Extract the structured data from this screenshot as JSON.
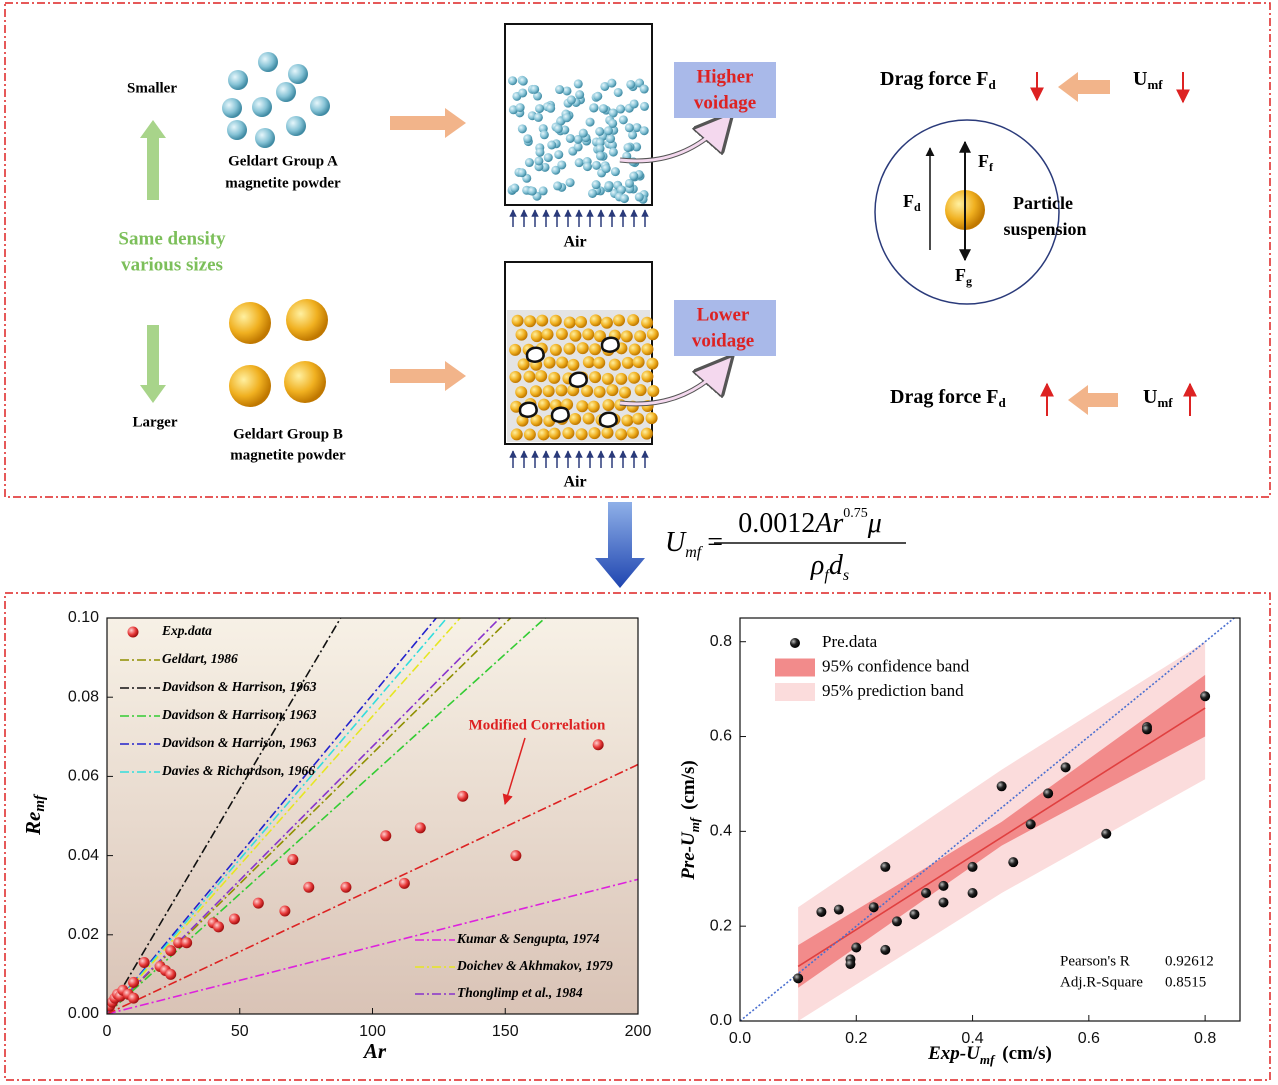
{
  "diagram": {
    "size_small": "Smaller",
    "size_large": "Larger",
    "density": [
      "Same density",
      "various sizes"
    ],
    "group_a": [
      "Geldart Group A",
      "magnetite powder"
    ],
    "group_b": [
      "Geldart Group B",
      "magnetite powder"
    ],
    "air_top": "Air",
    "air_bottom": "Air",
    "voidage_high": [
      "Higher",
      "voidage"
    ],
    "voidage_low": [
      "Lower",
      "voidage"
    ],
    "drag_top": {
      "label": "Drag force F",
      "sub": "d",
      "u": "U",
      "u_sub": "mf"
    },
    "drag_bottom": {
      "label": "Drag force F",
      "sub": "d",
      "u": "U",
      "u_sub": "mf"
    },
    "forces": {
      "ff": "F",
      "ff_sub": "f",
      "fd": "F",
      "fd_sub": "d",
      "fg": "F",
      "fg_sub": "g",
      "suspension": [
        "Particle",
        "suspension"
      ]
    }
  },
  "equation": {
    "lhs": "U",
    "lhs_sub": "mf",
    "eq": "=",
    "coef": "0.0012",
    "var": "Ar",
    "exp": "0.75",
    "mu": "μ",
    "rho": "ρ",
    "rho_sub": "f",
    "d": "d",
    "d_sub": "s"
  },
  "chart_data": [
    {
      "type": "scatter",
      "xlabel": "Ar",
      "ylabel": "Re",
      "ylabel_sub": "mf",
      "xlim": [
        0,
        200
      ],
      "ylim": [
        0,
        0.1
      ],
      "xticks": [
        0,
        50,
        100,
        150,
        200
      ],
      "yticks": [
        {
          "value": 0,
          "label": "0.00"
        },
        {
          "value": 0.02,
          "label": "0.02"
        },
        {
          "value": 0.04,
          "label": "0.04"
        },
        {
          "value": 0.06,
          "label": "0.06"
        },
        {
          "value": 0.08,
          "label": "0.08"
        },
        {
          "value": 0.1,
          "label": "0.10"
        }
      ],
      "series": [
        {
          "name": "Exp.data",
          "color": "#e83a3a",
          "kind": "points",
          "legend": "upper left",
          "x": [
            1,
            2,
            3,
            4,
            5,
            6,
            8,
            10,
            10,
            14,
            20,
            22,
            24,
            24,
            27,
            30,
            40,
            42,
            48,
            57,
            67,
            70,
            76,
            90,
            105,
            112,
            118,
            134,
            154,
            185
          ],
          "values": [
            0.002,
            0.003,
            0.004,
            0.005,
            0.0045,
            0.006,
            0.005,
            0.004,
            0.008,
            0.013,
            0.012,
            0.011,
            0.01,
            0.016,
            0.018,
            0.018,
            0.023,
            0.022,
            0.024,
            0.028,
            0.026,
            0.039,
            0.032,
            0.032,
            0.045,
            0.033,
            0.047,
            0.055,
            0.04,
            0.068
          ]
        },
        {
          "name": "Geldart, 1986",
          "color": "#8f8f00",
          "kind": "line",
          "style": "dashdot",
          "legend": "upper left",
          "x": [
            0,
            152
          ],
          "values": [
            0,
            0.1
          ]
        },
        {
          "name": "Davidson & Harrison, 1963",
          "color": "#111111",
          "kind": "line",
          "style": "dashdot",
          "legend": "upper left",
          "x": [
            0,
            88
          ],
          "values": [
            0,
            0.1
          ]
        },
        {
          "name": "Davidson & Harrison, 1963",
          "color": "#33cc33",
          "kind": "line",
          "style": "dashdot",
          "legend": "upper left",
          "x": [
            0,
            165
          ],
          "values": [
            0,
            0.1
          ]
        },
        {
          "name": "Davidson & Harrison, 1963",
          "color": "#2222cc",
          "kind": "line",
          "style": "dashdot",
          "legend": "upper left",
          "x": [
            0,
            124
          ],
          "values": [
            0,
            0.1
          ]
        },
        {
          "name": "Davies & Richardson, 1966",
          "color": "#33dddd",
          "kind": "line",
          "style": "dashdot",
          "legend": "upper left",
          "x": [
            0,
            128
          ],
          "values": [
            0,
            0.1
          ]
        },
        {
          "name": "Kumar & Sengupta, 1974",
          "color": "#dd22dd",
          "kind": "line",
          "style": "dashdot",
          "legend": "lower right",
          "x": [
            0,
            200
          ],
          "values": [
            0,
            0.034
          ]
        },
        {
          "name": "Doichev & Akhmakov, 1979",
          "color": "#e6e622",
          "kind": "line",
          "style": "dashdot",
          "legend": "lower right",
          "x": [
            0,
            133
          ],
          "values": [
            0,
            0.1
          ]
        },
        {
          "name": "Thonglimp et al., 1984",
          "color": "#8833cc",
          "kind": "line",
          "style": "dashdot",
          "legend": "lower right",
          "x": [
            0,
            148
          ],
          "values": [
            0,
            0.1
          ]
        },
        {
          "name": "Modified Correlation",
          "color": "#dd2222",
          "kind": "line",
          "style": "dashdot",
          "legend": "annotation",
          "x": [
            0,
            200
          ],
          "values": [
            0,
            0.063
          ]
        }
      ]
    },
    {
      "type": "scatter",
      "xlabel": "Exp-U",
      "xlabel_sub": "mf",
      "xlabel_unit": "(cm/s)",
      "ylabel": "Pre-U",
      "ylabel_sub": "mf",
      "ylabel_unit": "(cm/s)",
      "xlim": [
        0,
        0.86
      ],
      "ylim": [
        0,
        0.85
      ],
      "xticks": [
        {
          "value": 0,
          "label": "0.0"
        },
        0.2,
        0.4,
        0.6,
        0.8
      ],
      "yticks": [
        {
          "value": 0,
          "label": "0.0"
        },
        0.2,
        0.4,
        0.6,
        0.8
      ],
      "series": [
        {
          "name": "Pre.data",
          "color": "#111111",
          "kind": "points",
          "x": [
            0.1,
            0.14,
            0.17,
            0.19,
            0.19,
            0.2,
            0.23,
            0.25,
            0.25,
            0.27,
            0.3,
            0.32,
            0.35,
            0.35,
            0.4,
            0.4,
            0.45,
            0.47,
            0.5,
            0.53,
            0.56,
            0.63,
            0.7,
            0.7,
            0.8
          ],
          "values": [
            0.09,
            0.23,
            0.235,
            0.13,
            0.12,
            0.155,
            0.24,
            0.325,
            0.15,
            0.21,
            0.225,
            0.27,
            0.285,
            0.25,
            0.325,
            0.27,
            0.495,
            0.335,
            0.415,
            0.48,
            0.535,
            0.395,
            0.62,
            0.615,
            0.685
          ]
        },
        {
          "name": "95% confidence band",
          "color": "#f28b8b",
          "kind": "band",
          "x": [
            0.1,
            0.45,
            0.8
          ],
          "lower": [
            0.07,
            0.37,
            0.6
          ],
          "upper": [
            0.16,
            0.42,
            0.73
          ]
        },
        {
          "name": "95% prediction band",
          "color": "#fbdcdc",
          "kind": "band",
          "x": [
            0.1,
            0.45,
            0.8
          ],
          "lower": [
            0,
            0.27,
            0.51
          ],
          "upper": [
            0.24,
            0.53,
            0.8
          ]
        },
        {
          "color": "#e04040",
          "kind": "line",
          "style": "solid",
          "x": [
            0.1,
            0.8
          ],
          "values": [
            0.115,
            0.66
          ]
        },
        {
          "color": "#4a6fd0",
          "kind": "line",
          "style": "dotted",
          "x": [
            0,
            0.85
          ],
          "values": [
            0,
            0.85
          ]
        }
      ],
      "stats": [
        {
          "label": "Pearson's R",
          "value": 0.92612
        },
        {
          "label": "Adj.R-Square",
          "value": 0.8515
        }
      ]
    }
  ]
}
